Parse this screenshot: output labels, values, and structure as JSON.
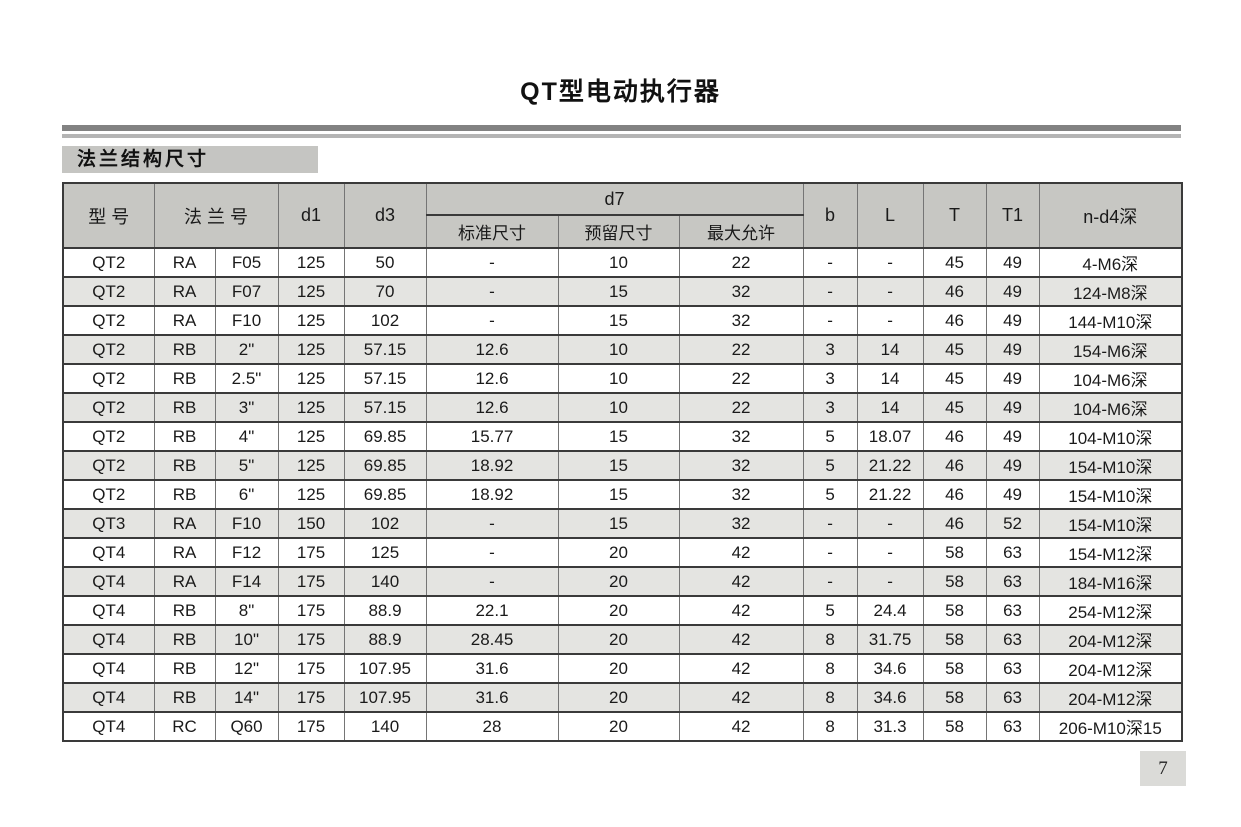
{
  "page": {
    "title": "QT型电动执行器",
    "section_label": "法兰结构尺寸",
    "page_number": "7"
  },
  "colors": {
    "header_bg": "#c7c7c3",
    "stripe_bg": "#e4e4e1",
    "label_bg": "#c5c5c2",
    "rule_dark": "#828282",
    "rule_light": "#b4b4b4",
    "border_dark": "#3a3a3a",
    "badge_bg": "#dbdbd8"
  },
  "table": {
    "headers": {
      "model": "型 号",
      "flange_no": "法 兰 号",
      "d1": "d1",
      "d3": "d3",
      "d7": "d7",
      "d7_standard": "标准尺寸",
      "d7_reserved": "预留尺寸",
      "d7_max": "最大允许",
      "b": "b",
      "L": "L",
      "T": "T",
      "T1": "T1",
      "n_d4": "n-d4深"
    },
    "rows": [
      [
        "QT2",
        "RA",
        "F05",
        "125",
        "50",
        "-",
        "10",
        "22",
        "-",
        "-",
        "45",
        "49",
        "4-M6深"
      ],
      [
        "QT2",
        "RA",
        "F07",
        "125",
        "70",
        "-",
        "15",
        "32",
        "-",
        "-",
        "46",
        "49",
        "124-M8深"
      ],
      [
        "QT2",
        "RA",
        "F10",
        "125",
        "102",
        "-",
        "15",
        "32",
        "-",
        "-",
        "46",
        "49",
        "144-M10深"
      ],
      [
        "QT2",
        "RB",
        "2\"",
        "125",
        "57.15",
        "12.6",
        "10",
        "22",
        "3",
        "14",
        "45",
        "49",
        "154-M6深"
      ],
      [
        "QT2",
        "RB",
        "2.5\"",
        "125",
        "57.15",
        "12.6",
        "10",
        "22",
        "3",
        "14",
        "45",
        "49",
        "104-M6深"
      ],
      [
        "QT2",
        "RB",
        "3\"",
        "125",
        "57.15",
        "12.6",
        "10",
        "22",
        "3",
        "14",
        "45",
        "49",
        "104-M6深"
      ],
      [
        "QT2",
        "RB",
        "4\"",
        "125",
        "69.85",
        "15.77",
        "15",
        "32",
        "5",
        "18.07",
        "46",
        "49",
        "104-M10深"
      ],
      [
        "QT2",
        "RB",
        "5\"",
        "125",
        "69.85",
        "18.92",
        "15",
        "32",
        "5",
        "21.22",
        "46",
        "49",
        "154-M10深"
      ],
      [
        "QT2",
        "RB",
        "6\"",
        "125",
        "69.85",
        "18.92",
        "15",
        "32",
        "5",
        "21.22",
        "46",
        "49",
        "154-M10深"
      ],
      [
        "QT3",
        "RA",
        "F10",
        "150",
        "102",
        "-",
        "15",
        "32",
        "-",
        "-",
        "46",
        "52",
        "154-M10深"
      ],
      [
        "QT4",
        "RA",
        "F12",
        "175",
        "125",
        "-",
        "20",
        "42",
        "-",
        "-",
        "58",
        "63",
        "154-M12深"
      ],
      [
        "QT4",
        "RA",
        "F14",
        "175",
        "140",
        "-",
        "20",
        "42",
        "-",
        "-",
        "58",
        "63",
        "184-M16深"
      ],
      [
        "QT4",
        "RB",
        "8\"",
        "175",
        "88.9",
        "22.1",
        "20",
        "42",
        "5",
        "24.4",
        "58",
        "63",
        "254-M12深"
      ],
      [
        "QT4",
        "RB",
        "10\"",
        "175",
        "88.9",
        "28.45",
        "20",
        "42",
        "8",
        "31.75",
        "58",
        "63",
        "204-M12深"
      ],
      [
        "QT4",
        "RB",
        "12\"",
        "175",
        "107.95",
        "31.6",
        "20",
        "42",
        "8",
        "34.6",
        "58",
        "63",
        "204-M12深"
      ],
      [
        "QT4",
        "RB",
        "14\"",
        "175",
        "107.95",
        "31.6",
        "20",
        "42",
        "8",
        "34.6",
        "58",
        "63",
        "204-M12深"
      ],
      [
        "QT4",
        "RC",
        "Q60",
        "175",
        "140",
        "28",
        "20",
        "42",
        "8",
        "31.3",
        "58",
        "63",
        "206-M10深15"
      ]
    ]
  }
}
